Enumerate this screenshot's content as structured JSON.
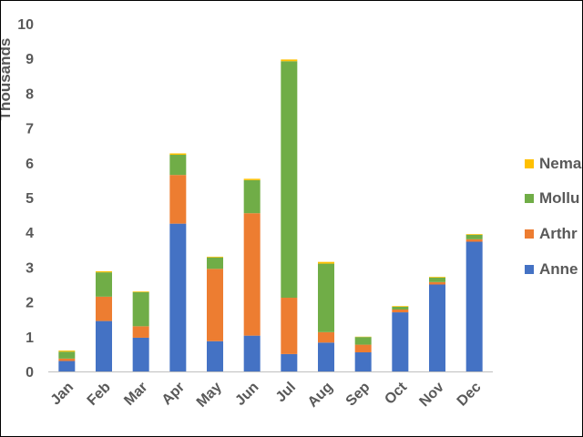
{
  "chart_data": {
    "type": "bar",
    "stacked": true,
    "categories": [
      "Jan",
      "Feb",
      "Mar",
      "Apr",
      "May",
      "Jun",
      "Jul",
      "Aug",
      "Sep",
      "Oct",
      "Nov",
      "Dec"
    ],
    "series": [
      {
        "name": "Annelida",
        "color": "#4472C4",
        "values": [
          0.3,
          1.45,
          0.97,
          4.25,
          0.87,
          1.03,
          0.5,
          0.83,
          0.55,
          1.7,
          2.5,
          3.73
        ]
      },
      {
        "name": "Arthropoda",
        "color": "#ED7D31",
        "values": [
          0.07,
          0.7,
          0.33,
          1.4,
          2.08,
          3.52,
          1.62,
          0.3,
          0.22,
          0.08,
          0.07,
          0.07
        ]
      },
      {
        "name": "Mollusca",
        "color": "#70AD47",
        "values": [
          0.2,
          0.7,
          0.98,
          0.58,
          0.33,
          0.95,
          6.8,
          1.97,
          0.22,
          0.08,
          0.13,
          0.13
        ]
      },
      {
        "name": "Nematoda",
        "color": "#FFC000",
        "values": [
          0.03,
          0.03,
          0.02,
          0.04,
          0.02,
          0.04,
          0.05,
          0.05,
          0.01,
          0.02,
          0.02,
          0.02
        ]
      }
    ],
    "ylabel": "Thousands",
    "ylim": [
      0,
      10
    ],
    "yticks": [
      0,
      1,
      2,
      3,
      4,
      5,
      6,
      7,
      8,
      9,
      10
    ],
    "grid": false,
    "legend_placement": "right",
    "legend_labels": [
      "Nema",
      "Mollu",
      "Arthr",
      "Anne"
    ]
  }
}
